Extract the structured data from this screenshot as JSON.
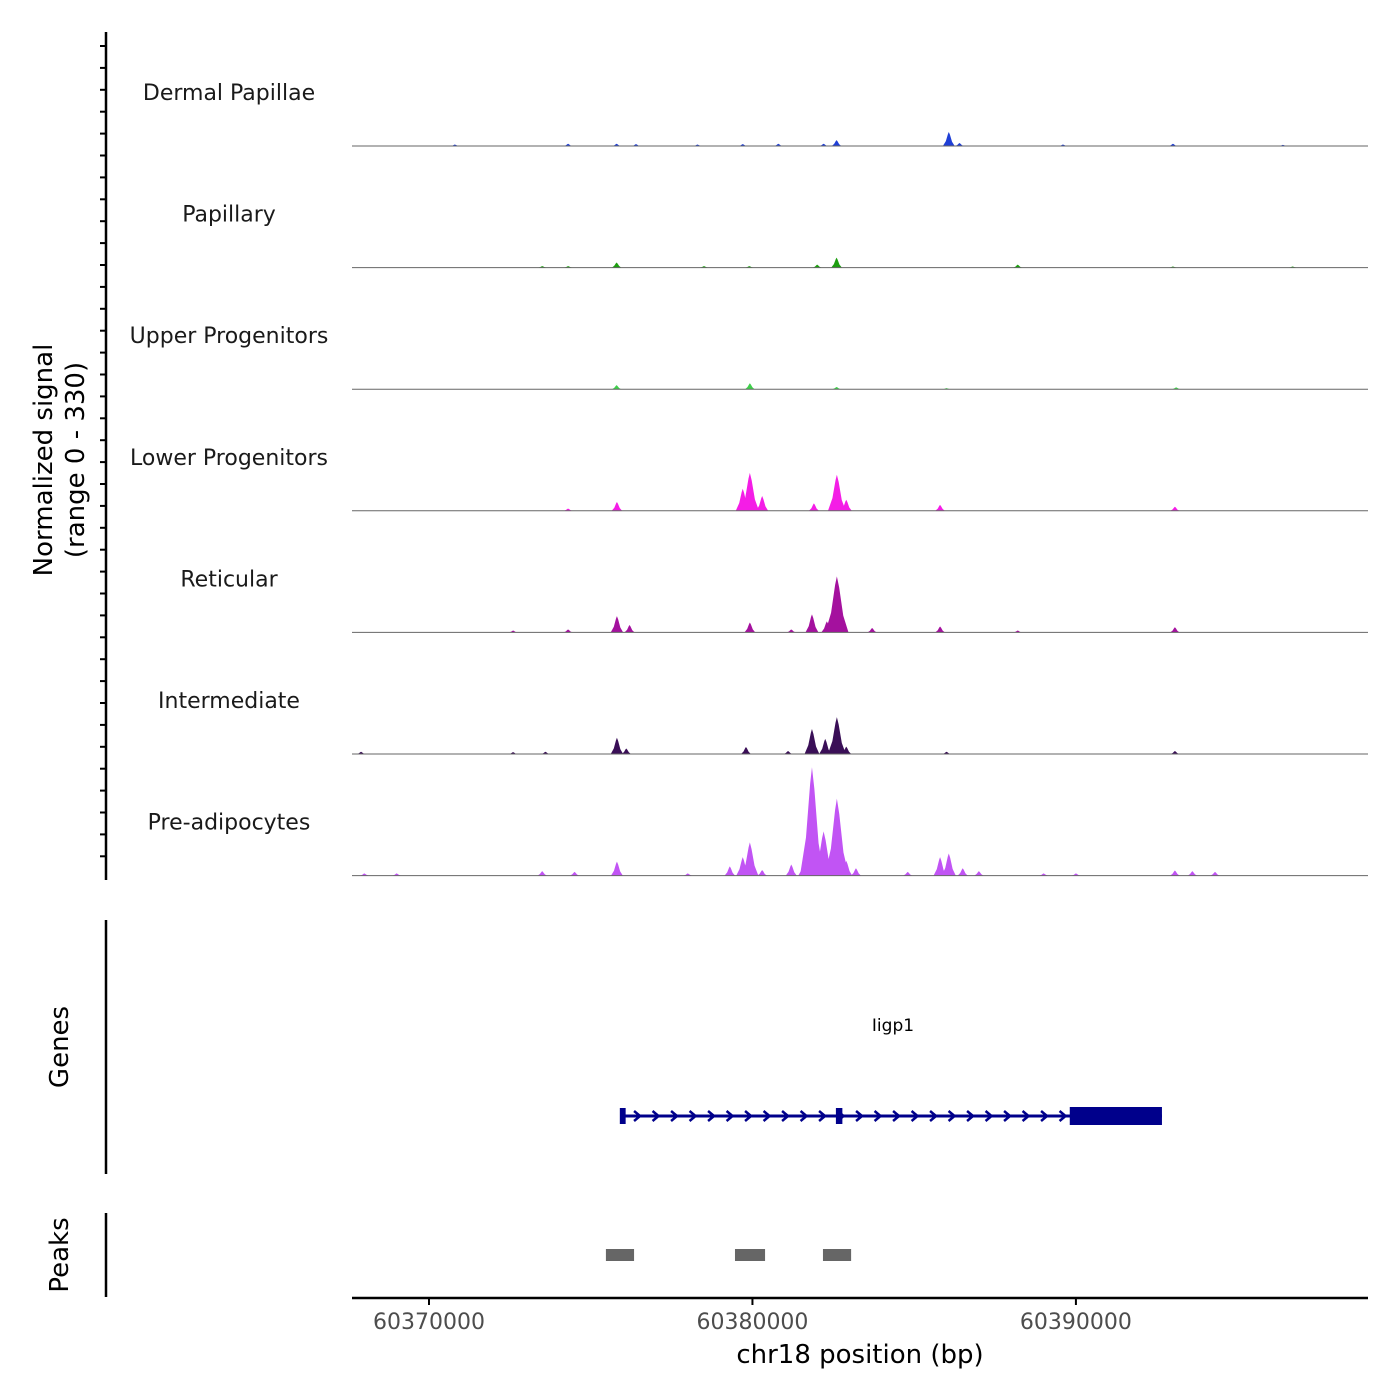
{
  "chart_data": {
    "type": "area",
    "title": "",
    "xlabel": "chr18 position (bp)",
    "ylabel": "Normalized signal",
    "ylabel_range": "(range 0 - 330)",
    "ylim": [
      0,
      330
    ],
    "xlim": [
      60367620,
      60399030
    ],
    "x_ticks": [
      60370000,
      60380000,
      60390000
    ],
    "x_tick_labels": [
      "60370000",
      "60380000",
      "60390000"
    ],
    "tracks": [
      {
        "name": "Dermal Papillae",
        "color": "#1f3fd6",
        "peaks": [
          [
            60370800,
            4
          ],
          [
            60374300,
            6
          ],
          [
            60375800,
            6
          ],
          [
            60376400,
            5
          ],
          [
            60378300,
            4
          ],
          [
            60379700,
            5
          ],
          [
            60380800,
            6
          ],
          [
            60382200,
            6
          ],
          [
            60382600,
            16
          ],
          [
            60386070,
            38
          ],
          [
            60386400,
            8
          ],
          [
            60389600,
            4
          ],
          [
            60393000,
            6
          ],
          [
            60396400,
            3
          ]
        ]
      },
      {
        "name": "Papillary",
        "color": "#1d9e10",
        "peaks": [
          [
            60373500,
            4
          ],
          [
            60374300,
            4
          ],
          [
            60375800,
            14
          ],
          [
            60378500,
            4
          ],
          [
            60379900,
            4
          ],
          [
            60382000,
            8
          ],
          [
            60382600,
            27
          ],
          [
            60388200,
            8
          ],
          [
            60393000,
            3
          ],
          [
            60396700,
            3
          ]
        ]
      },
      {
        "name": "Upper Progenitors",
        "color": "#3ecf4a",
        "peaks": [
          [
            60375800,
            11
          ],
          [
            60379920,
            16
          ],
          [
            60382600,
            6
          ],
          [
            60386000,
            3
          ],
          [
            60393100,
            5
          ]
        ]
      },
      {
        "name": "Lower Progenitors",
        "color": "#f41de6",
        "peaks": [
          [
            60374300,
            6
          ],
          [
            60375810,
            24
          ],
          [
            60379700,
            60
          ],
          [
            60379920,
            103
          ],
          [
            60380300,
            40
          ],
          [
            60381900,
            20
          ],
          [
            60382610,
            98
          ],
          [
            60382900,
            30
          ],
          [
            60385800,
            16
          ],
          [
            60393060,
            11
          ]
        ]
      },
      {
        "name": "Reticular",
        "color": "#a4119e",
        "peaks": [
          [
            60372600,
            5
          ],
          [
            60374300,
            8
          ],
          [
            60375810,
            44
          ],
          [
            60376200,
            20
          ],
          [
            60379920,
            27
          ],
          [
            60381200,
            8
          ],
          [
            60381840,
            49
          ],
          [
            60382300,
            30
          ],
          [
            60382610,
            152
          ],
          [
            60383700,
            12
          ],
          [
            60385800,
            16
          ],
          [
            60388200,
            5
          ],
          [
            60393060,
            14
          ]
        ]
      },
      {
        "name": "Intermediate",
        "color": "#3a0f57",
        "peaks": [
          [
            60367900,
            6
          ],
          [
            60372600,
            5
          ],
          [
            60373600,
            6
          ],
          [
            60375810,
            44
          ],
          [
            60376100,
            15
          ],
          [
            60379800,
            19
          ],
          [
            60381100,
            8
          ],
          [
            60381840,
            68
          ],
          [
            60382250,
            41
          ],
          [
            60382610,
            100
          ],
          [
            60382900,
            20
          ],
          [
            60386000,
            6
          ],
          [
            60393060,
            8
          ]
        ]
      },
      {
        "name": "Pre-adipocytes",
        "color": "#c154f4",
        "peaks": [
          [
            60368000,
            6
          ],
          [
            60369000,
            6
          ],
          [
            60373500,
            12
          ],
          [
            60374500,
            10
          ],
          [
            60375810,
            38
          ],
          [
            60378000,
            6
          ],
          [
            60379300,
            25
          ],
          [
            60379700,
            50
          ],
          [
            60379920,
            90
          ],
          [
            60380300,
            15
          ],
          [
            60381200,
            30
          ],
          [
            60381600,
            40
          ],
          [
            60381840,
            294
          ],
          [
            60382200,
            120
          ],
          [
            60382610,
            209
          ],
          [
            60382900,
            40
          ],
          [
            60383200,
            20
          ],
          [
            60384800,
            10
          ],
          [
            60385800,
            50
          ],
          [
            60386070,
            60
          ],
          [
            60386500,
            20
          ],
          [
            60387000,
            12
          ],
          [
            60389000,
            6
          ],
          [
            60390000,
            6
          ],
          [
            60393060,
            14
          ],
          [
            60393600,
            12
          ],
          [
            60394300,
            10
          ]
        ]
      }
    ],
    "genes_label": "Genes",
    "genes": [
      {
        "name": "Iigp1",
        "start": 60376000,
        "end": 60392660,
        "strand": "+",
        "exons": [
          [
            60375900,
            60376080
          ],
          [
            60382580,
            60382780
          ],
          [
            60389810,
            60392660
          ]
        ],
        "color": "#00008b"
      }
    ],
    "peaks_label": "Peaks",
    "peak_regions": [
      [
        60375470,
        60376340
      ],
      [
        60379460,
        60380390
      ],
      [
        60382180,
        60383050
      ]
    ],
    "peak_color": "#666666"
  }
}
